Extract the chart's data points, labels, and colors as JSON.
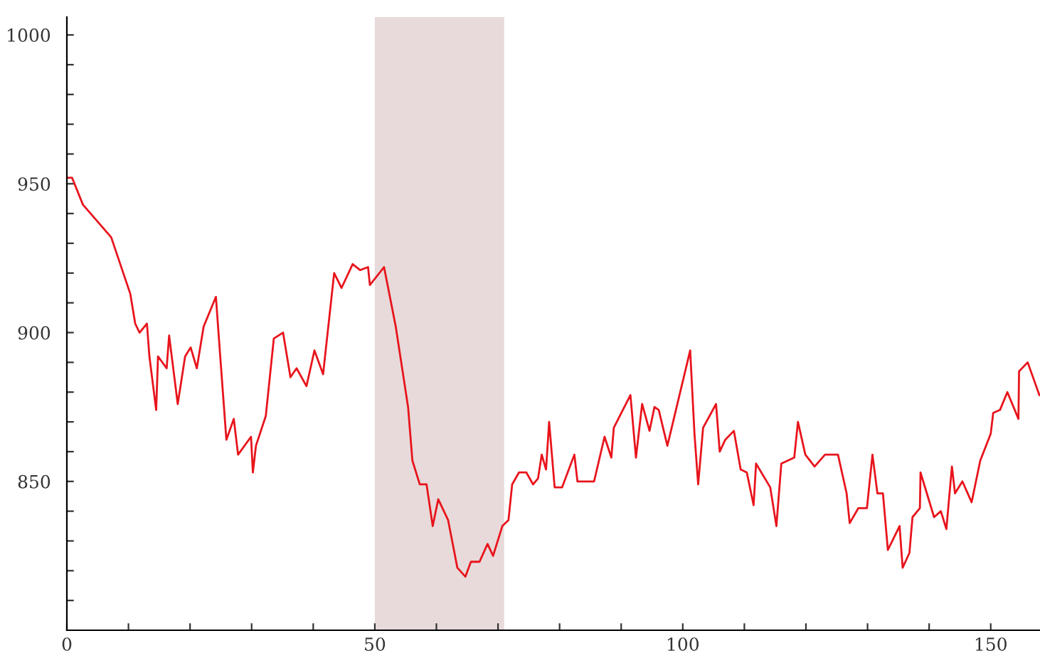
{
  "chart_data": {
    "type": "line",
    "series": [
      {
        "color": "#e8141c",
        "x": [
          0,
          0.85,
          2.6,
          7.2,
          10.3,
          11.1,
          11.8,
          13,
          13.4,
          14.5,
          14.8,
          16.2,
          16.6,
          18,
          19.2,
          20.1,
          21.1,
          22.2,
          24.2,
          24.9,
          25.9,
          27.1,
          27.8,
          29.9,
          30.2,
          30.7,
          32.3,
          33.6,
          35.1,
          36.3,
          37.3,
          38.9,
          40.2,
          41.6,
          43.4,
          44.6,
          46.4,
          47.6,
          48.9,
          49.2,
          51.5,
          53.4,
          55.4,
          56.1,
          57.3,
          58.4,
          59.4,
          60.3,
          61.9,
          63.4,
          64.7,
          65.6,
          67,
          68.3,
          69.2,
          70.7,
          71.7,
          72.3,
          73.4,
          74.6,
          75.7,
          76.5,
          77.1,
          77.8,
          78.3,
          79.2,
          80.4,
          82.4,
          82.9,
          85.6,
          87.3,
          88.4,
          88.8,
          91.5,
          92.4,
          93.4,
          94.6,
          95.4,
          96.1,
          97.5,
          101.2,
          101.9,
          102.5,
          103.3,
          105.4,
          106,
          106.9,
          108.3,
          109.4,
          110.4,
          111.5,
          111.9,
          114.2,
          115.2,
          116,
          118.1,
          118.7,
          119.9,
          121.4,
          123.1,
          125.2,
          126.6,
          127.1,
          128.5,
          129.9,
          130.8,
          131.6,
          132.5,
          133.3,
          135.2,
          135.7,
          136.8,
          137.3,
          138.5,
          138.6,
          140.8,
          141.9,
          142.8,
          143.7,
          144.2,
          145.4,
          146.9,
          148.3,
          150,
          150.4,
          151.5,
          152.7,
          154.5,
          154.6,
          156,
          157.9
        ],
        "values": [
          952,
          952,
          943,
          932,
          913,
          903,
          900,
          903,
          892,
          874,
          892,
          888,
          899,
          876,
          892,
          895,
          888,
          902,
          912,
          892,
          864,
          871,
          859,
          865,
          853,
          862,
          872,
          898,
          900,
          885,
          888,
          882,
          894,
          886,
          920,
          915,
          923,
          921,
          922,
          916,
          922,
          902,
          875,
          857,
          849,
          849,
          835,
          844,
          837,
          821,
          818,
          823,
          823,
          829,
          825,
          835,
          837,
          849,
          853,
          853,
          849,
          851,
          859,
          854,
          870,
          848,
          848,
          859,
          850,
          850,
          865,
          858,
          868,
          879,
          858,
          876,
          867,
          875,
          874,
          862,
          894,
          866,
          849,
          868,
          876,
          860,
          864,
          867,
          854,
          853,
          842,
          856,
          848,
          835,
          856,
          858,
          870,
          859,
          855,
          859,
          859,
          846,
          836,
          841,
          841,
          859,
          846,
          846,
          827,
          835,
          821,
          826,
          838,
          841,
          853,
          838,
          840,
          834,
          855,
          846,
          850,
          843,
          857,
          866,
          873,
          874,
          880,
          871,
          887,
          890,
          879
        ]
      }
    ],
    "xlim": [
      0,
      158
    ],
    "ylim": [
      800,
      1006
    ],
    "xticks": [
      0,
      {
        "value": 10,
        "label": null
      },
      {
        "value": 20,
        "label": null
      },
      {
        "value": 30,
        "label": null
      },
      {
        "value": 40,
        "label": null
      },
      50,
      {
        "value": 60,
        "label": null
      },
      {
        "value": 70,
        "label": null
      },
      {
        "value": 80,
        "label": null
      },
      {
        "value": 90,
        "label": null
      },
      100,
      {
        "value": 110,
        "label": null
      },
      {
        "value": 120,
        "label": null
      },
      {
        "value": 130,
        "label": null
      },
      {
        "value": 140,
        "label": null
      },
      150
    ],
    "yticks": [
      {
        "value": 810,
        "label": null
      },
      {
        "value": 820,
        "label": null
      },
      {
        "value": 830,
        "label": null
      },
      {
        "value": 840,
        "label": null
      },
      850,
      {
        "value": 860,
        "label": null
      },
      {
        "value": 870,
        "label": null
      },
      {
        "value": 880,
        "label": null
      },
      {
        "value": 890,
        "label": null
      },
      900,
      {
        "value": 910,
        "label": null
      },
      {
        "value": 920,
        "label": null
      },
      {
        "value": 930,
        "label": null
      },
      {
        "value": 940,
        "label": null
      },
      950,
      {
        "value": 960,
        "label": null
      },
      {
        "value": 970,
        "label": null
      },
      {
        "value": 980,
        "label": null
      },
      {
        "value": 990,
        "label": null
      },
      1000
    ],
    "bands": [
      {
        "axis": "x",
        "from": 50,
        "to": 71,
        "color": "#e8dada"
      }
    ],
    "grid": false,
    "marker": "none",
    "line_style": "solid"
  }
}
